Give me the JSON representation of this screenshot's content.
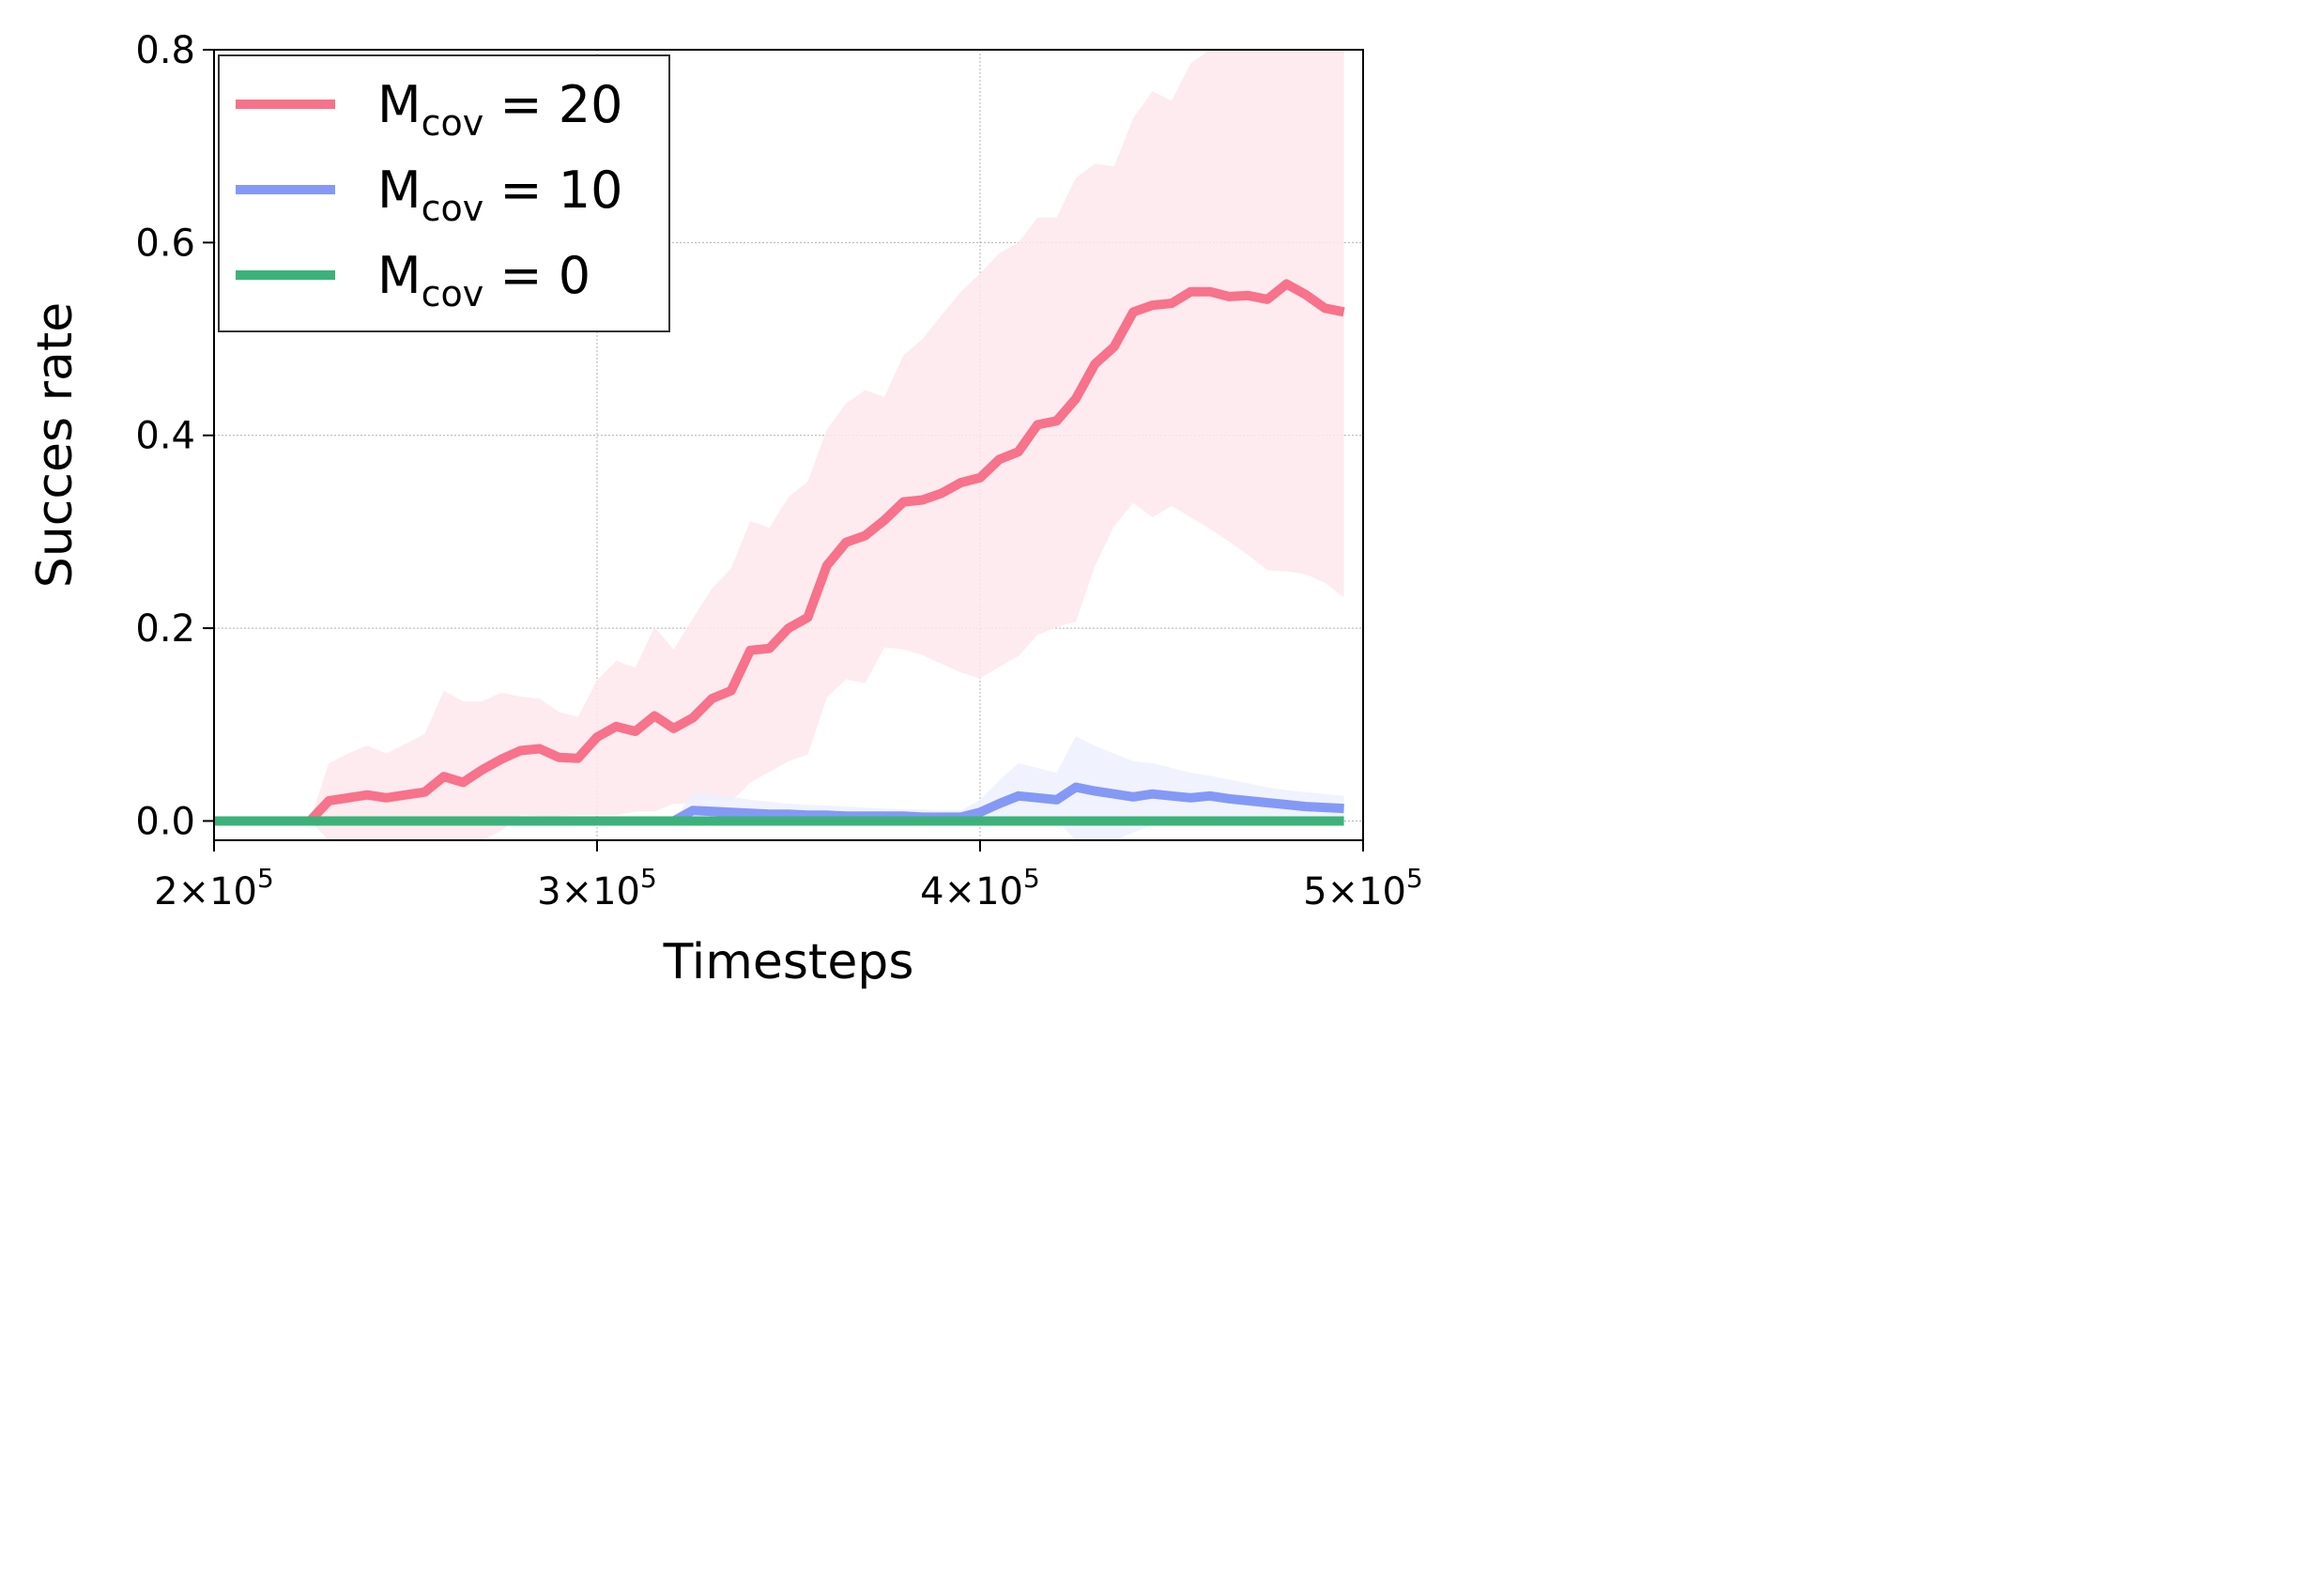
{
  "chart_data": {
    "type": "line",
    "xlabel": "Timesteps",
    "ylabel": "Succes rate",
    "xlim": [
      200000,
      500000
    ],
    "ylim": [
      -0.02,
      0.8
    ],
    "grid": true,
    "legend_placement": "top-left",
    "x_ticks": [
      {
        "value": 200000,
        "base": "2×10",
        "exp": "5"
      },
      {
        "value": 300000,
        "base": "3×10",
        "exp": "5"
      },
      {
        "value": 400000,
        "base": "4×10",
        "exp": "5"
      },
      {
        "value": 500000,
        "base": "5×10",
        "exp": "5"
      }
    ],
    "y_ticks": [
      {
        "value": 0.0,
        "label": "0.0"
      },
      {
        "value": 0.2,
        "label": "0.2"
      },
      {
        "value": 0.4,
        "label": "0.4"
      },
      {
        "value": 0.6,
        "label": "0.6"
      },
      {
        "value": 0.8,
        "label": "0.8"
      }
    ],
    "series": [
      {
        "name": "M_cov = 20",
        "legend": {
          "main": "M",
          "sub": "cov",
          "rest": " = 20"
        },
        "color": "#f7728a",
        "band_color": "#fde7ec",
        "x": [
          200000,
          205000,
          210000,
          215000,
          220000,
          225000,
          230000,
          235000,
          240000,
          245000,
          250000,
          255000,
          260000,
          265000,
          270000,
          275000,
          280000,
          285000,
          290000,
          295000,
          300000,
          305000,
          310000,
          315000,
          320000,
          325000,
          330000,
          335000,
          340000,
          345000,
          350000,
          355000,
          360000,
          365000,
          370000,
          375000,
          380000,
          385000,
          390000,
          395000,
          400000,
          405000,
          410000,
          415000,
          420000,
          425000,
          430000,
          435000,
          440000,
          445000,
          450000,
          455000,
          460000,
          465000,
          470000,
          475000,
          480000,
          485000,
          490000,
          495000
        ],
        "y": [
          0.0,
          0.0,
          0.0,
          0.0,
          0.0,
          0.0,
          0.021,
          0.024,
          0.027,
          0.024,
          0.027,
          0.03,
          0.046,
          0.04,
          0.053,
          0.064,
          0.073,
          0.075,
          0.066,
          0.065,
          0.087,
          0.098,
          0.093,
          0.109,
          0.096,
          0.107,
          0.127,
          0.135,
          0.177,
          0.179,
          0.2,
          0.211,
          0.265,
          0.289,
          0.296,
          0.312,
          0.331,
          0.333,
          0.34,
          0.351,
          0.356,
          0.375,
          0.383,
          0.411,
          0.415,
          0.438,
          0.474,
          0.492,
          0.528,
          0.535,
          0.537,
          0.549,
          0.549,
          0.544,
          0.545,
          0.541,
          0.557,
          0.546,
          0.532,
          0.528
        ],
        "upper": [
          0.0,
          0.0,
          0.0,
          0.0,
          0.0,
          0.0,
          0.06,
          0.07,
          0.078,
          0.07,
          0.08,
          0.09,
          0.135,
          0.124,
          0.124,
          0.133,
          0.129,
          0.127,
          0.113,
          0.108,
          0.146,
          0.166,
          0.159,
          0.201,
          0.178,
          0.21,
          0.241,
          0.262,
          0.311,
          0.304,
          0.336,
          0.352,
          0.406,
          0.433,
          0.447,
          0.44,
          0.483,
          0.5,
          0.525,
          0.549,
          0.568,
          0.589,
          0.6,
          0.626,
          0.626,
          0.667,
          0.682,
          0.679,
          0.729,
          0.757,
          0.747,
          0.786,
          0.8,
          0.8,
          0.8,
          0.8,
          0.8,
          0.8,
          0.8,
          0.8
        ],
        "lower": [
          0.0,
          0.0,
          0.0,
          0.0,
          0.0,
          0.0,
          -0.02,
          -0.02,
          -0.02,
          -0.02,
          -0.02,
          -0.02,
          -0.02,
          -0.02,
          -0.02,
          -0.01,
          0.006,
          0.005,
          0.005,
          0.006,
          0.006,
          0.006,
          0.01,
          0.01,
          0.018,
          0.018,
          0.022,
          0.02,
          0.04,
          0.051,
          0.062,
          0.069,
          0.128,
          0.147,
          0.143,
          0.18,
          0.178,
          0.172,
          0.163,
          0.154,
          0.148,
          0.16,
          0.171,
          0.193,
          0.201,
          0.207,
          0.265,
          0.306,
          0.33,
          0.315,
          0.327,
          0.315,
          0.303,
          0.29,
          0.276,
          0.26,
          0.259,
          0.256,
          0.247,
          0.232
        ]
      },
      {
        "name": "M_cov = 10",
        "legend": {
          "main": "M",
          "sub": "cov",
          "rest": " = 10"
        },
        "color": "#8499f6",
        "band_color": "#edf1fe",
        "x": [
          200000,
          205000,
          210000,
          215000,
          220000,
          225000,
          230000,
          235000,
          240000,
          245000,
          250000,
          255000,
          260000,
          265000,
          270000,
          275000,
          280000,
          285000,
          290000,
          295000,
          300000,
          305000,
          310000,
          315000,
          320000,
          325000,
          330000,
          335000,
          340000,
          345000,
          350000,
          355000,
          360000,
          365000,
          370000,
          375000,
          380000,
          385000,
          390000,
          395000,
          400000,
          405000,
          410000,
          415000,
          420000,
          425000,
          430000,
          435000,
          440000,
          445000,
          450000,
          455000,
          460000,
          465000,
          470000,
          475000,
          480000,
          485000,
          490000,
          495000
        ],
        "y": [
          0.0,
          0.0,
          0.0,
          0.0,
          0.0,
          0.0,
          0.0,
          0.0,
          0.0,
          0.0,
          0.0,
          0.0,
          0.0,
          0.0,
          0.0,
          0.0,
          0.0,
          0.0,
          0.0,
          0.0,
          0.0,
          0.0,
          0.0,
          0.0,
          0.0,
          0.011,
          0.01,
          0.009,
          0.008,
          0.007,
          0.007,
          0.006,
          0.006,
          0.005,
          0.005,
          0.005,
          0.005,
          0.004,
          0.004,
          0.004,
          0.009,
          0.018,
          0.026,
          0.024,
          0.022,
          0.035,
          0.031,
          0.028,
          0.025,
          0.028,
          0.026,
          0.024,
          0.026,
          0.023,
          0.021,
          0.019,
          0.017,
          0.015,
          0.014,
          0.013
        ],
        "upper": [
          0.0,
          0.0,
          0.0,
          0.0,
          0.0,
          0.0,
          0.0,
          0.0,
          0.0,
          0.0,
          0.0,
          0.0,
          0.0,
          0.0,
          0.0,
          0.0,
          0.0,
          0.0,
          0.0,
          0.0,
          0.0,
          0.0,
          0.0,
          0.0,
          0.0,
          0.03,
          0.028,
          0.025,
          0.022,
          0.02,
          0.018,
          0.017,
          0.016,
          0.015,
          0.014,
          0.013,
          0.012,
          0.012,
          0.011,
          0.011,
          0.022,
          0.042,
          0.06,
          0.055,
          0.05,
          0.088,
          0.078,
          0.07,
          0.062,
          0.06,
          0.055,
          0.05,
          0.047,
          0.043,
          0.039,
          0.035,
          0.032,
          0.03,
          0.028,
          0.026
        ],
        "lower": [
          0.0,
          0.0,
          0.0,
          0.0,
          0.0,
          0.0,
          0.0,
          0.0,
          0.0,
          0.0,
          0.0,
          0.0,
          0.0,
          0.0,
          0.0,
          0.0,
          0.0,
          0.0,
          0.0,
          0.0,
          0.0,
          0.0,
          0.0,
          0.0,
          0.0,
          0.0,
          0.0,
          0.0,
          0.0,
          0.0,
          0.0,
          0.0,
          0.0,
          0.0,
          0.0,
          0.0,
          0.0,
          0.0,
          0.0,
          0.0,
          0.0,
          0.0,
          0.0,
          0.0,
          0.0,
          -0.02,
          -0.02,
          -0.02,
          -0.012,
          -0.004,
          -0.002,
          0.0,
          0.002,
          0.004,
          0.004,
          0.004,
          0.003,
          0.002,
          0.001,
          0.0
        ]
      },
      {
        "name": "M_cov = 0",
        "legend": {
          "main": "M",
          "sub": "cov",
          "rest": " = 0"
        },
        "color": "#3cb27a",
        "band_color": "#3cb27a",
        "x": [
          200000,
          495000
        ],
        "y": [
          0.0,
          0.0
        ],
        "upper": [
          0.0,
          0.0
        ],
        "lower": [
          0.0,
          0.0
        ]
      }
    ]
  }
}
